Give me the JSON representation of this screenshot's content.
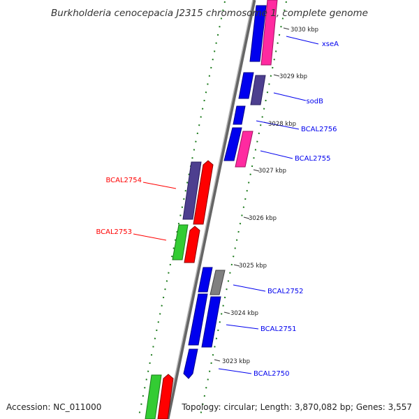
{
  "title": "Burkholderia cenocepacia J2315 chromosome 1, complete genome",
  "accession": "Accession: NC_011000",
  "summary": "Topology: circular; Length: 3,870,082 bp; Genes: 3,557",
  "colors": {
    "forward_strand": "#0000ee",
    "reverse_strand": "#ff0000",
    "pink": "#ff2aa0",
    "purple": "#4d3f8f",
    "green": "#33cc33",
    "gray": "#808080",
    "gc_skew": "#1a7a1a",
    "backbone": "#7a7a7a"
  },
  "ticks": [
    "3030 kbp",
    "3029 kbp",
    "3028 kbp",
    "3027 kbp",
    "3026 kbp",
    "3025 kbp",
    "3024 kbp",
    "3023 kbp"
  ],
  "gene_labels": [
    {
      "text": "xseA",
      "strand": "forward"
    },
    {
      "text": "sodB",
      "strand": "forward"
    },
    {
      "text": "BCAL2756",
      "strand": "forward"
    },
    {
      "text": "BCAL2755",
      "strand": "forward"
    },
    {
      "text": "BCAL2754",
      "strand": "reverse"
    },
    {
      "text": "BCAL2753",
      "strand": "reverse"
    },
    {
      "text": "BCAL2752",
      "strand": "forward"
    },
    {
      "text": "BCAL2751",
      "strand": "forward"
    },
    {
      "text": "BCAL2750",
      "strand": "forward"
    }
  ]
}
